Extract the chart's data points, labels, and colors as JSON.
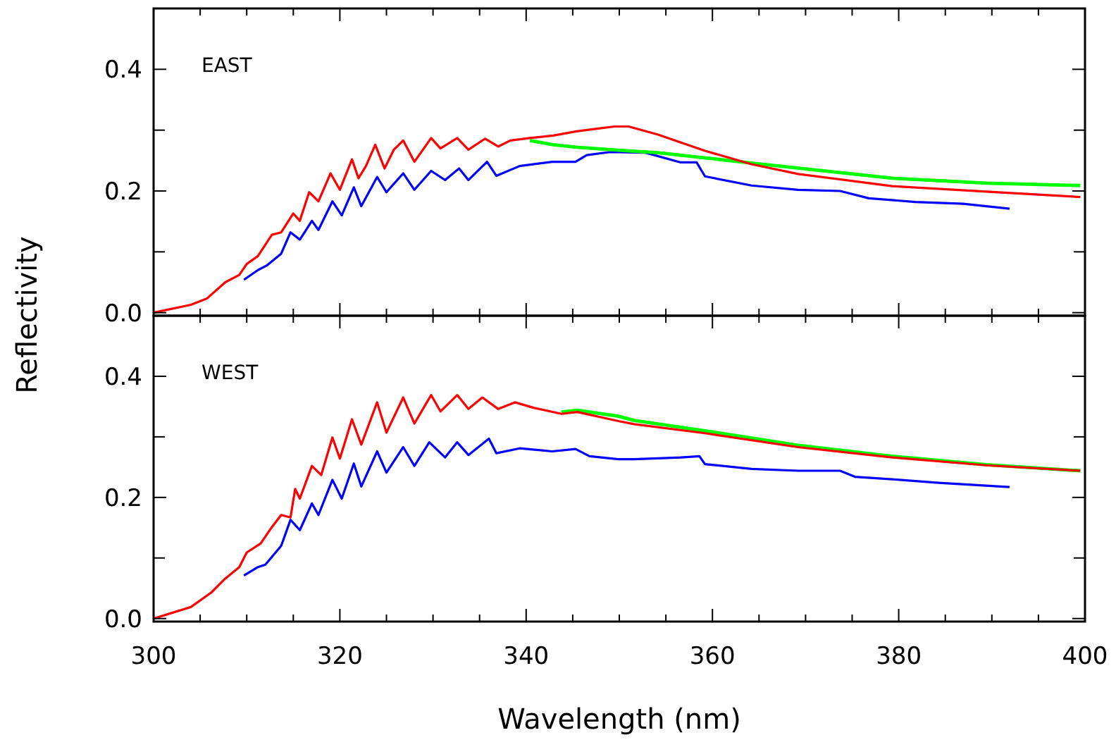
{
  "chart_data": [
    {
      "type": "line",
      "annotations": [
        "EAST"
      ],
      "ylabel": "Reflectivity",
      "xlim": [
        300,
        400
      ],
      "ylim": [
        -0.005,
        0.5
      ],
      "tick_labels": "y",
      "grid": false,
      "marker": "none",
      "line_style": "solid",
      "xticks": [
        300,
        {
          "value": 305,
          "label": null
        },
        320,
        {
          "value": 325,
          "label": null
        },
        {
          "value": 310,
          "label": null
        },
        {
          "value": 315,
          "label": null
        },
        {
          "value": 330,
          "label": null
        },
        {
          "value": 335,
          "label": null
        },
        340,
        {
          "value": 345,
          "label": null
        },
        {
          "value": 350,
          "label": null
        },
        {
          "value": 355,
          "label": null
        },
        360,
        {
          "value": 365,
          "label": null
        },
        {
          "value": 370,
          "label": null
        },
        {
          "value": 375,
          "label": null
        },
        380,
        {
          "value": 385,
          "label": null
        },
        {
          "value": 390,
          "label": null
        },
        {
          "value": 395,
          "label": null
        },
        400
      ],
      "yticks": [
        {
          "value": 0,
          "label": "0.0"
        },
        {
          "value": 0.1,
          "label": null
        },
        {
          "value": 0.2,
          "label": "0.2"
        },
        {
          "value": 0.3,
          "label": null
        },
        {
          "value": 0.4,
          "label": "0.4"
        }
      ],
      "series": [
        {
          "color": "#0000ff",
          "x": [
            309.7,
            311.2,
            312.2,
            313.7,
            314.7,
            315.7,
            317,
            317.7,
            319.2,
            320.2,
            321.5,
            322.3,
            324,
            325,
            326.8,
            328,
            329.8,
            331.3,
            332.8,
            333.8,
            335.8,
            336.8,
            339.3,
            342.8,
            345.3,
            346.5,
            349,
            352.8,
            356.6,
            358.3,
            359.2,
            364.2,
            369.2,
            373.7,
            376.8,
            381.8,
            386.9,
            391.9
          ],
          "values": [
            0.054,
            0.07,
            0.078,
            0.097,
            0.132,
            0.12,
            0.151,
            0.136,
            0.183,
            0.16,
            0.206,
            0.175,
            0.223,
            0.198,
            0.229,
            0.202,
            0.233,
            0.218,
            0.237,
            0.218,
            0.248,
            0.225,
            0.241,
            0.248,
            0.248,
            0.259,
            0.264,
            0.263,
            0.247,
            0.247,
            0.224,
            0.209,
            0.202,
            0.2,
            0.188,
            0.182,
            0.179,
            0.171
          ]
        },
        {
          "color": "#00ff00",
          "x": [
            340.4,
            342.9,
            345.4,
            349.9,
            354.1,
            364.2,
            379.3,
            389.4,
            399.5
          ],
          "values": [
            0.283,
            0.276,
            0.272,
            0.267,
            0.263,
            0.246,
            0.221,
            0.213,
            0.209
          ]
        },
        {
          "color": "#ff0000",
          "x": [
            300,
            304,
            305.7,
            307.7,
            309.2,
            310,
            311.2,
            312.7,
            313.7,
            315,
            315.7,
            316.7,
            317.7,
            319,
            320,
            321.3,
            322,
            322.8,
            323.8,
            324.8,
            325.8,
            326.8,
            328,
            329.8,
            330.8,
            332.6,
            333.8,
            335.6,
            337,
            338.3,
            340.4,
            342.9,
            345.4,
            347.9,
            349.5,
            351,
            354.1,
            359.2,
            364.2,
            369.2,
            379.3,
            389.4,
            399.5
          ],
          "values": [
            0,
            0.013,
            0.023,
            0.05,
            0.062,
            0.08,
            0.093,
            0.128,
            0.132,
            0.163,
            0.151,
            0.198,
            0.183,
            0.229,
            0.202,
            0.252,
            0.221,
            0.241,
            0.276,
            0.237,
            0.268,
            0.283,
            0.248,
            0.287,
            0.27,
            0.287,
            0.268,
            0.286,
            0.273,
            0.283,
            0.287,
            0.291,
            0.298,
            0.303,
            0.306,
            0.306,
            0.293,
            0.266,
            0.244,
            0.228,
            0.208,
            0.199,
            0.19
          ]
        }
      ]
    },
    {
      "type": "line",
      "annotations": [
        "WEST"
      ],
      "xlabel": "Wavelength (nm)",
      "xlim": [
        300,
        400
      ],
      "ylim": [
        -0.005,
        0.5
      ],
      "grid": false,
      "marker": "none",
      "line_style": "solid",
      "xticks": [
        300,
        {
          "value": 305,
          "label": null
        },
        {
          "value": 310,
          "label": null
        },
        {
          "value": 315,
          "label": null
        },
        320,
        {
          "value": 325,
          "label": null
        },
        {
          "value": 330,
          "label": null
        },
        {
          "value": 335,
          "label": null
        },
        340,
        {
          "value": 345,
          "label": null
        },
        {
          "value": 350,
          "label": null
        },
        {
          "value": 355,
          "label": null
        },
        360,
        {
          "value": 365,
          "label": null
        },
        {
          "value": 370,
          "label": null
        },
        {
          "value": 375,
          "label": null
        },
        380,
        {
          "value": 385,
          "label": null
        },
        {
          "value": 390,
          "label": null
        },
        {
          "value": 395,
          "label": null
        },
        400
      ],
      "yticks": [
        {
          "value": 0,
          "label": "0.0"
        },
        {
          "value": 0.1,
          "label": null
        },
        {
          "value": 0.2,
          "label": "0.2"
        },
        {
          "value": 0.3,
          "label": null
        },
        {
          "value": 0.4,
          "label": "0.4"
        }
      ],
      "series": [
        {
          "color": "#0000ff",
          "x": [
            309.7,
            311.2,
            312,
            313.7,
            314.7,
            315.7,
            317,
            317.7,
            319.2,
            320.2,
            321.5,
            322.3,
            324,
            325,
            326.8,
            328,
            329.6,
            331.3,
            332.6,
            333.8,
            336,
            336.8,
            339.3,
            342.8,
            345.3,
            346.8,
            349.9,
            351.6,
            356.6,
            358.6,
            359.2,
            364.2,
            369.2,
            373.7,
            375.3,
            379.3,
            384.3,
            391.9
          ],
          "values": [
            0.071,
            0.085,
            0.089,
            0.12,
            0.163,
            0.146,
            0.19,
            0.171,
            0.229,
            0.198,
            0.256,
            0.218,
            0.276,
            0.241,
            0.283,
            0.252,
            0.291,
            0.266,
            0.291,
            0.27,
            0.297,
            0.273,
            0.281,
            0.276,
            0.28,
            0.268,
            0.263,
            0.263,
            0.266,
            0.268,
            0.255,
            0.247,
            0.244,
            0.244,
            0.234,
            0.23,
            0.224,
            0.217
          ]
        },
        {
          "color": "#00ff00",
          "x": [
            343.8,
            345.5,
            349.9,
            351.6,
            359.2,
            369.2,
            379.3,
            389.4,
            399.5
          ],
          "values": [
            0.341,
            0.344,
            0.334,
            0.327,
            0.31,
            0.286,
            0.268,
            0.254,
            0.244
          ]
        },
        {
          "color": "#ff0000",
          "x": [
            300,
            304,
            306.2,
            307.7,
            309.2,
            310,
            311.5,
            312.7,
            313.7,
            314.7,
            315.2,
            315.7,
            317,
            318,
            319.2,
            320,
            321.3,
            322.3,
            324,
            325,
            326.8,
            328,
            329.8,
            330.8,
            332.6,
            333.8,
            335.3,
            337,
            338.8,
            340.8,
            343.8,
            345.5,
            349.9,
            351.6,
            359.2,
            369.2,
            379.3,
            389.4,
            399.5
          ],
          "values": [
            0,
            0.019,
            0.043,
            0.066,
            0.085,
            0.109,
            0.124,
            0.151,
            0.171,
            0.167,
            0.214,
            0.198,
            0.252,
            0.237,
            0.299,
            0.264,
            0.329,
            0.287,
            0.357,
            0.307,
            0.365,
            0.322,
            0.369,
            0.342,
            0.369,
            0.346,
            0.365,
            0.346,
            0.357,
            0.348,
            0.338,
            0.341,
            0.326,
            0.321,
            0.306,
            0.283,
            0.266,
            0.253,
            0.244
          ]
        }
      ]
    }
  ]
}
